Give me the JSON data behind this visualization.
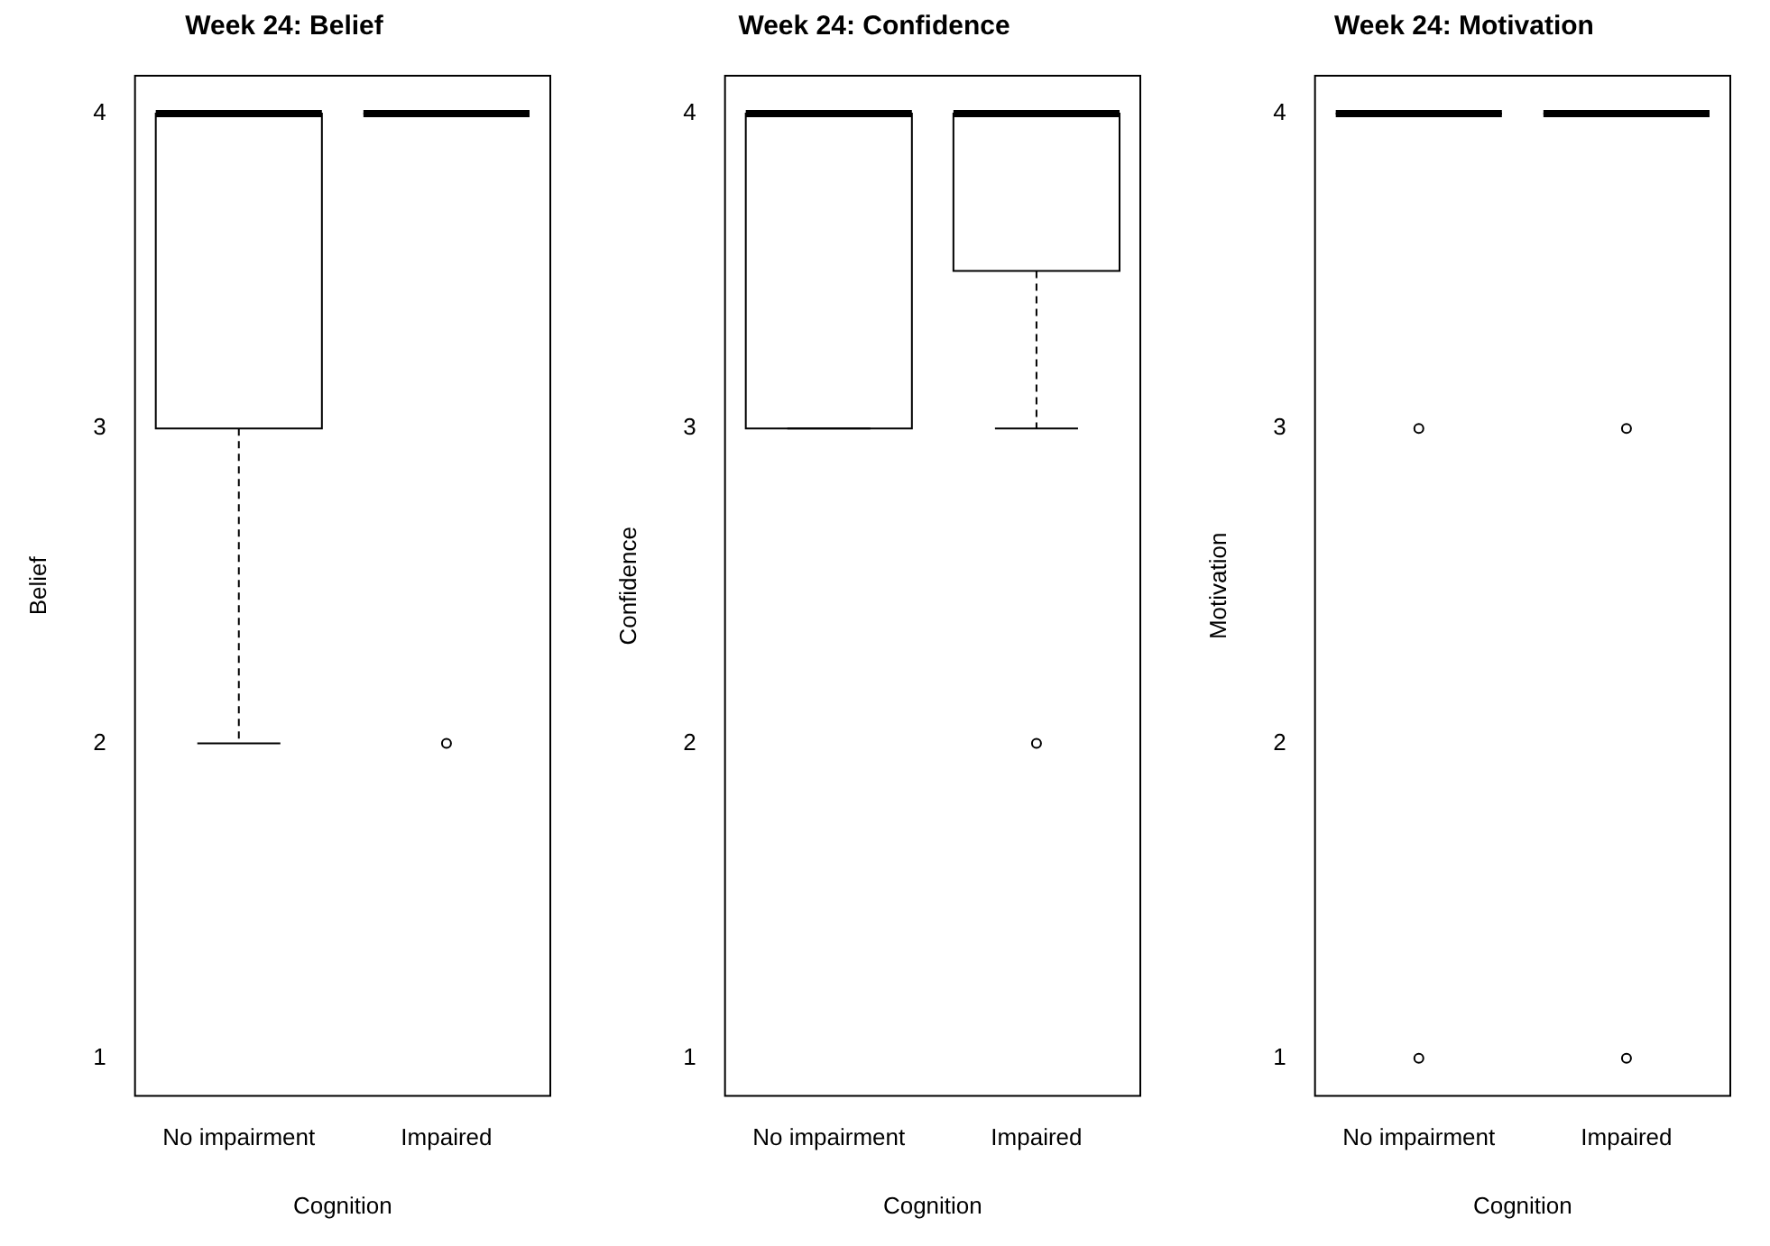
{
  "chart_data": [
    {
      "type": "box",
      "title": "Week 24: Belief",
      "xlabel": "Cognition",
      "ylabel": "Belief",
      "categories": [
        "No impairment",
        "Impaired"
      ],
      "boxes": [
        {
          "low": 2,
          "q1": 3,
          "median": 4,
          "q3": 4,
          "high": 4
        },
        {
          "low": 4,
          "q1": 4,
          "median": 4,
          "q3": 4,
          "high": 4,
          "outliers": [
            2
          ]
        }
      ],
      "ylim": [
        0.88,
        4.12
      ],
      "yticks": [
        1,
        2,
        3,
        4
      ]
    },
    {
      "type": "box",
      "title": "Week 24: Confidence",
      "xlabel": "Cognition",
      "ylabel": "Confidence",
      "categories": [
        "No impairment",
        "Impaired"
      ],
      "boxes": [
        {
          "low": 3,
          "q1": 3,
          "median": 4,
          "q3": 4,
          "high": 4
        },
        {
          "low": 3,
          "q1": 3.5,
          "median": 4,
          "q3": 4,
          "high": 4,
          "outliers": [
            2
          ]
        }
      ],
      "ylim": [
        0.88,
        4.12
      ],
      "yticks": [
        1,
        2,
        3,
        4
      ]
    },
    {
      "type": "box",
      "title": "Week 24: Motivation",
      "xlabel": "Cognition",
      "ylabel": "Motivation",
      "categories": [
        "No impairment",
        "Impaired"
      ],
      "boxes": [
        {
          "low": 4,
          "q1": 4,
          "median": 4,
          "q3": 4,
          "high": 4,
          "outliers": [
            3,
            1
          ]
        },
        {
          "low": 4,
          "q1": 4,
          "median": 4,
          "q3": 4,
          "high": 4,
          "outliers": [
            3,
            1
          ]
        }
      ],
      "ylim": [
        0.88,
        4.12
      ],
      "yticks": [
        1,
        2,
        3,
        4
      ]
    }
  ]
}
